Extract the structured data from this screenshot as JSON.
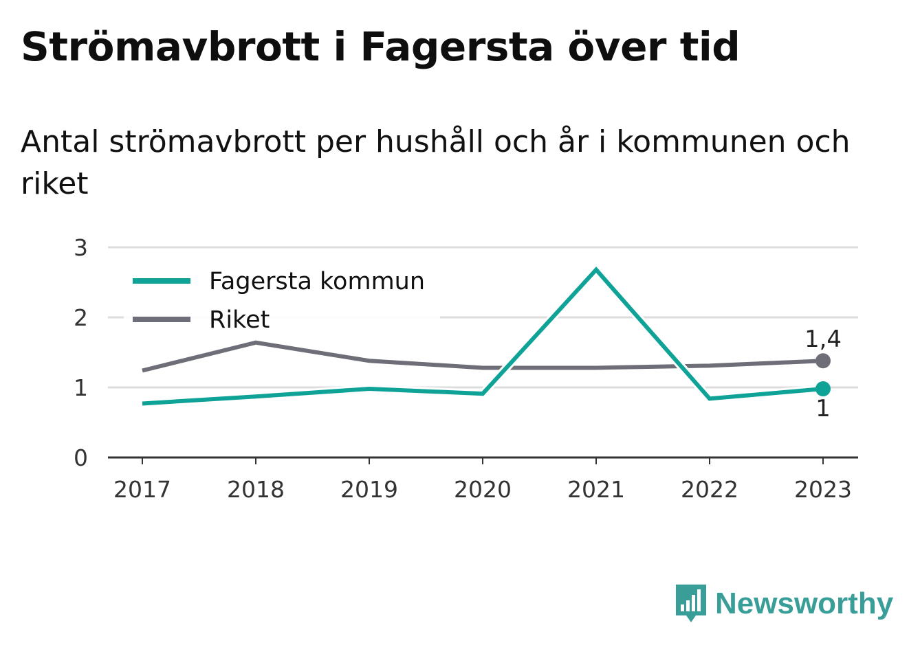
{
  "title": "Strömavbrott i Fagersta över tid",
  "subtitle": "Antal strömavbrott per hushåll och år i kommunen och riket",
  "brand": {
    "name": "Newsworthy",
    "icon": "bar-chart-speech-bubble-icon",
    "color": "#3a9e98"
  },
  "chart_data": {
    "type": "line",
    "title": "Strömavbrott i Fagersta över tid",
    "subtitle": "Antal strömavbrott per hushåll och år i kommunen och riket",
    "xlabel": "",
    "ylabel": "",
    "x": [
      "2017",
      "2018",
      "2019",
      "2020",
      "2021",
      "2022",
      "2023"
    ],
    "ylim": [
      0,
      3
    ],
    "yticks": [
      0,
      1,
      2,
      3
    ],
    "grid": true,
    "legend_position": "top-left",
    "series": [
      {
        "name": "Fagersta kommun",
        "color": "#0fa398",
        "values": [
          0.77,
          0.87,
          0.98,
          0.91,
          2.68,
          0.84,
          0.98
        ],
        "end_label": "1"
      },
      {
        "name": "Riket",
        "color": "#6e6e78",
        "values": [
          1.24,
          1.64,
          1.38,
          1.28,
          1.28,
          1.31,
          1.38
        ],
        "end_label": "1,4"
      }
    ]
  }
}
